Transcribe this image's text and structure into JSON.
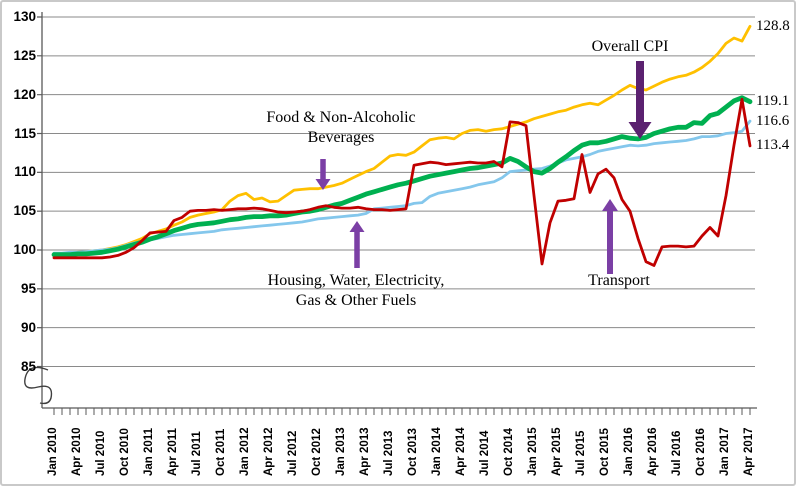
{
  "chart_data": {
    "type": "line",
    "title": "",
    "grid": true,
    "y_axis_break": true,
    "y_ticks": [
      130,
      125,
      120,
      115,
      110,
      105,
      100,
      95,
      90,
      85
    ],
    "ylim": [
      85,
      130
    ],
    "x_tick_labels": [
      "Jan 2010",
      "Apr 2010",
      "Jul 2010",
      "Oct 2010",
      "Jan 2011",
      "Apr 2011",
      "Jul 2011",
      "Oct 2011",
      "Jan 2012",
      "Apr 2012",
      "Jul 2012",
      "Oct 2012",
      "Jan 2013",
      "Apr 2013",
      "Jul 2013",
      "Oct 2013",
      "Jan 2014",
      "Apr 2014",
      "Jul 2014",
      "Oct 2014",
      "Jan 2015",
      "Apr 2015",
      "Jul 2015",
      "Oct 2015",
      "Jan 2016",
      "Apr 2016",
      "Jul 2016",
      "Oct 2016",
      "Jan 2017",
      "Apr 2017"
    ],
    "months_start": "Jan 2010",
    "months_end": "Apr 2017",
    "series": [
      {
        "name": "Overall CPI",
        "color": "#FFC000",
        "width": 2.8,
        "end_label": "128.8",
        "values": [
          99.5,
          99.5,
          99.6,
          99.7,
          99.8,
          99.9,
          100.0,
          100.2,
          100.4,
          100.7,
          101.1,
          101.5,
          102.1,
          102.4,
          102.7,
          103.2,
          103.6,
          104.2,
          104.5,
          104.7,
          104.9,
          105.2,
          106.3,
          107.0,
          107.3,
          106.5,
          106.7,
          106.2,
          106.3,
          107.0,
          107.7,
          107.8,
          107.9,
          107.9,
          108.1,
          108.3,
          108.6,
          109.1,
          109.6,
          110.1,
          110.5,
          111.3,
          112.1,
          112.3,
          112.2,
          112.6,
          113.4,
          114.2,
          114.4,
          114.5,
          114.3,
          115.0,
          115.4,
          115.5,
          115.3,
          115.5,
          115.6,
          115.9,
          116.2,
          116.5,
          116.9,
          117.2,
          117.5,
          117.8,
          118.0,
          118.4,
          118.7,
          118.9,
          118.7,
          119.3,
          119.9,
          120.6,
          121.2,
          120.8,
          120.6,
          121.1,
          121.6,
          122.0,
          122.3,
          122.5,
          122.9,
          123.5,
          124.3,
          125.3,
          126.6,
          127.3,
          126.9,
          128.8
        ]
      },
      {
        "name": "Housing, Water, Electricity, Gas & Other Fuels",
        "color": "#84C7EC",
        "width": 2.8,
        "end_label": "116.6",
        "values": [
          99.6,
          99.6,
          99.7,
          99.7,
          99.8,
          99.9,
          100.0,
          100.1,
          100.3,
          100.6,
          100.9,
          101.1,
          101.3,
          101.5,
          101.7,
          101.9,
          102.0,
          102.1,
          102.2,
          102.3,
          102.4,
          102.6,
          102.7,
          102.8,
          102.9,
          103.0,
          103.1,
          103.2,
          103.3,
          103.4,
          103.5,
          103.6,
          103.8,
          104.0,
          104.1,
          104.2,
          104.3,
          104.4,
          104.5,
          104.7,
          105.3,
          105.4,
          105.5,
          105.6,
          105.7,
          106.0,
          106.1,
          106.9,
          107.3,
          107.5,
          107.7,
          107.9,
          108.1,
          108.4,
          108.6,
          108.8,
          109.3,
          110.1,
          110.2,
          110.3,
          110.4,
          110.5,
          110.8,
          111.2,
          111.6,
          111.8,
          112.0,
          112.3,
          112.7,
          112.9,
          113.1,
          113.3,
          113.5,
          113.4,
          113.5,
          113.7,
          113.8,
          113.9,
          114.0,
          114.1,
          114.3,
          114.6,
          114.6,
          114.7,
          115.0,
          115.1,
          115.3,
          116.6
        ]
      },
      {
        "name": "Food & Non-Alcoholic Beverages",
        "color": "#00B050",
        "width": 4.8,
        "end_label": "119.1",
        "values": [
          99.4,
          99.4,
          99.4,
          99.5,
          99.5,
          99.6,
          99.7,
          99.9,
          100.1,
          100.4,
          100.7,
          101.0,
          101.4,
          101.7,
          102.1,
          102.5,
          102.8,
          103.1,
          103.3,
          103.4,
          103.5,
          103.7,
          103.9,
          104.0,
          104.2,
          104.3,
          104.3,
          104.4,
          104.4,
          104.5,
          104.7,
          104.9,
          105.0,
          105.2,
          105.5,
          105.8,
          106.0,
          106.4,
          106.8,
          107.2,
          107.5,
          107.8,
          108.1,
          108.4,
          108.6,
          108.9,
          109.2,
          109.5,
          109.7,
          109.9,
          110.1,
          110.3,
          110.5,
          110.6,
          110.8,
          111.0,
          111.2,
          111.8,
          111.4,
          110.7,
          110.1,
          109.9,
          110.5,
          111.3,
          112.0,
          112.8,
          113.5,
          113.8,
          113.8,
          114.0,
          114.3,
          114.6,
          114.4,
          114.3,
          114.5,
          115.0,
          115.3,
          115.6,
          115.8,
          115.8,
          116.4,
          116.3,
          117.3,
          117.6,
          118.4,
          119.2,
          119.6,
          119.1
        ]
      },
      {
        "name": "Transport",
        "color": "#C00000",
        "width": 2.8,
        "end_label": "113.4",
        "values": [
          99.0,
          99.0,
          99.0,
          99.0,
          99.0,
          99.0,
          99.0,
          99.1,
          99.3,
          99.7,
          100.3,
          101.2,
          102.2,
          102.3,
          102.4,
          103.8,
          104.2,
          105.0,
          105.1,
          105.1,
          105.2,
          105.1,
          105.2,
          105.3,
          105.3,
          105.4,
          105.3,
          105.1,
          104.9,
          104.8,
          104.9,
          105.0,
          105.2,
          105.5,
          105.7,
          105.5,
          105.4,
          105.4,
          105.5,
          105.3,
          105.2,
          105.2,
          105.1,
          105.2,
          105.3,
          110.9,
          111.1,
          111.3,
          111.2,
          111.0,
          111.1,
          111.2,
          111.3,
          111.2,
          111.2,
          111.4,
          110.7,
          116.5,
          116.4,
          116.0,
          107.0,
          98.2,
          103.5,
          106.3,
          106.4,
          106.6,
          112.3,
          107.4,
          109.8,
          110.4,
          109.3,
          106.5,
          105.0,
          101.5,
          98.5,
          98.0,
          100.4,
          100.5,
          100.5,
          100.4,
          100.5,
          101.8,
          102.9,
          101.8,
          107.0,
          113.5,
          119.4,
          113.4
        ]
      }
    ],
    "annotations": [
      {
        "id": "overall-cpi",
        "lines": [
          "Overall CPI"
        ]
      },
      {
        "id": "food",
        "lines": [
          "Food & Non-Alcoholic",
          "Beverages"
        ]
      },
      {
        "id": "housing",
        "lines": [
          "Housing, Water, Electricity,",
          "Gas & Other Fuels"
        ]
      },
      {
        "id": "transport",
        "lines": [
          "Transport"
        ]
      }
    ],
    "arrow_colors": {
      "large": "#5B2170",
      "small": "#7B3FA5"
    }
  }
}
